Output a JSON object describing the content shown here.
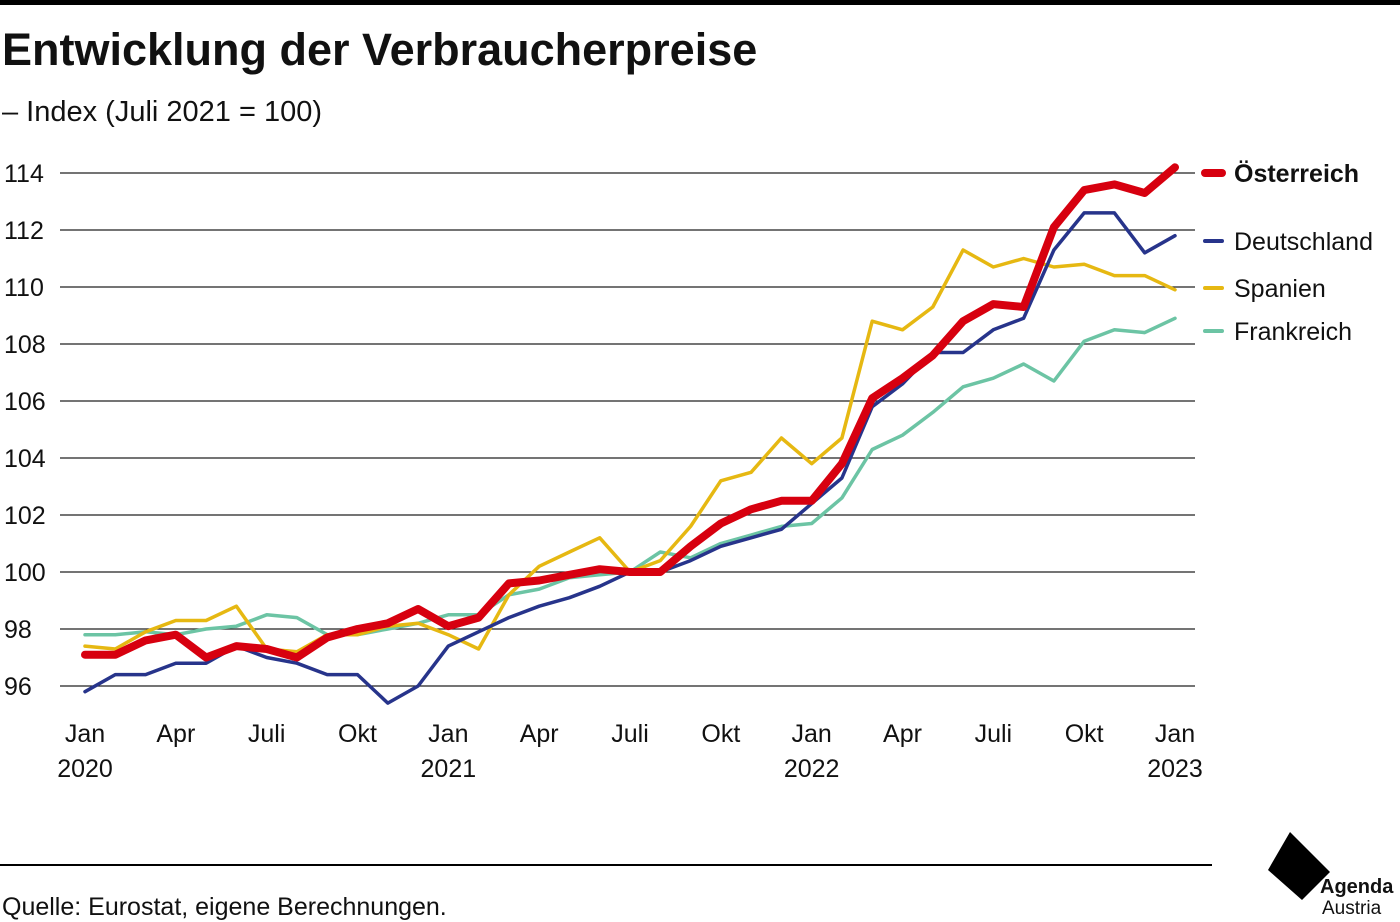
{
  "chart_data": {
    "type": "line",
    "title": "Entwicklung der Verbraucherpreise",
    "subtitle": "– Index (Juli 2021 = 100)",
    "source": "Quelle: Eurostat, eigene Berechnungen.",
    "logo": [
      "Agenda",
      "Austria"
    ],
    "categories": [
      "Jan 2020",
      null,
      null,
      "Apr",
      null,
      null,
      "Juli",
      null,
      null,
      "Okt",
      null,
      null,
      "Jan 2021",
      null,
      null,
      "Apr",
      null,
      null,
      "Juli",
      null,
      null,
      "Okt",
      null,
      null,
      "Jan 2022",
      null,
      null,
      "Apr",
      null,
      null,
      "Juli",
      null,
      null,
      "Okt",
      null,
      null,
      "Jan 2023"
    ],
    "series": [
      {
        "name": "Österreich",
        "color": "#d7000f",
        "values": [
          97.1,
          97.1,
          97.6,
          97.8,
          97.0,
          97.4,
          97.3,
          97.0,
          97.7,
          98.0,
          98.2,
          98.7,
          98.1,
          98.4,
          99.6,
          99.7,
          99.9,
          100.1,
          100.0,
          100.0,
          100.9,
          101.7,
          102.2,
          102.5,
          102.5,
          103.8,
          106.1,
          106.8,
          107.6,
          108.8,
          109.4,
          109.3,
          112.1,
          113.4,
          113.6,
          113.3,
          114.2
        ]
      },
      {
        "name": "Deutschland",
        "color": "#27348b",
        "values": [
          95.8,
          96.4,
          96.4,
          96.8,
          96.8,
          97.4,
          97.0,
          96.8,
          96.4,
          96.4,
          95.4,
          96.0,
          97.4,
          97.9,
          98.4,
          98.8,
          99.1,
          99.5,
          100.0,
          100.0,
          100.4,
          100.9,
          101.2,
          101.5,
          102.4,
          103.3,
          105.8,
          106.6,
          107.7,
          107.7,
          108.5,
          108.9,
          111.3,
          112.6,
          112.6,
          111.2,
          111.8
        ]
      },
      {
        "name": "Spanien",
        "color": "#e6b812",
        "values": [
          97.4,
          97.3,
          97.9,
          98.3,
          98.3,
          98.8,
          97.3,
          97.2,
          97.8,
          97.8,
          98.1,
          98.2,
          97.8,
          97.3,
          99.2,
          100.2,
          100.7,
          101.2,
          100.0,
          100.4,
          101.6,
          103.2,
          103.5,
          104.7,
          103.8,
          104.7,
          108.8,
          108.5,
          109.3,
          111.3,
          110.7,
          111.0,
          110.7,
          110.8,
          110.4,
          110.4,
          109.9
        ]
      },
      {
        "name": "Frankreich",
        "color": "#6cc4a4",
        "values": [
          97.8,
          97.8,
          97.9,
          97.8,
          98.0,
          98.1,
          98.5,
          98.4,
          97.8,
          97.8,
          98.0,
          98.2,
          98.5,
          98.5,
          99.2,
          99.4,
          99.8,
          99.9,
          100.0,
          100.7,
          100.5,
          101.0,
          101.3,
          101.6,
          101.7,
          102.6,
          104.3,
          104.8,
          105.6,
          106.5,
          106.8,
          107.3,
          106.7,
          108.1,
          108.5,
          108.4,
          108.9
        ]
      }
    ],
    "ylim": [
      95,
      114.5
    ],
    "yticks": [
      96,
      98,
      100,
      102,
      104,
      106,
      108,
      110,
      112,
      114
    ],
    "grid": true
  }
}
